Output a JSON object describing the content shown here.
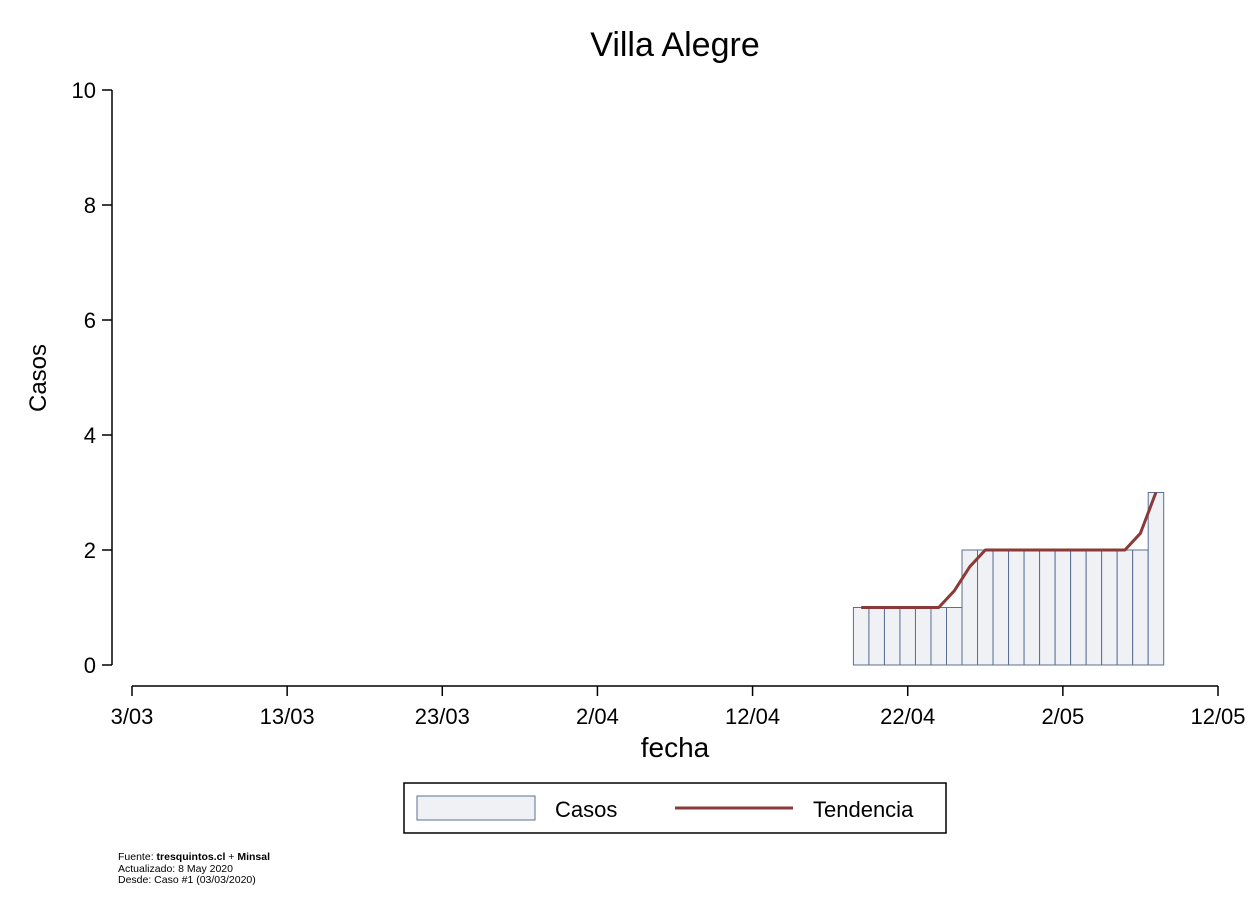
{
  "chart_data": {
    "type": "bar",
    "title": "Villa Alegre",
    "xlabel": "fecha",
    "ylabel": "Casos",
    "ylim": [
      0,
      10
    ],
    "yticks": [
      0,
      2,
      4,
      6,
      8,
      10
    ],
    "xlim": [
      "2020-03-03",
      "2020-05-12"
    ],
    "xticks": [
      "3/03",
      "13/03",
      "23/03",
      "2/04",
      "12/04",
      "22/04",
      "2/05",
      "12/05"
    ],
    "grid": false,
    "legend_position": "bottom",
    "bar_color": "#f0f1f4",
    "bar_edge_color": "#5a6f93",
    "trend_color": "#8b3a3a",
    "series": [
      {
        "name": "Casos",
        "kind": "bar",
        "x": [
          "2020-04-19",
          "2020-04-20",
          "2020-04-21",
          "2020-04-22",
          "2020-04-23",
          "2020-04-24",
          "2020-04-25",
          "2020-04-26",
          "2020-04-27",
          "2020-04-28",
          "2020-04-29",
          "2020-04-30",
          "2020-05-01",
          "2020-05-02",
          "2020-05-03",
          "2020-05-04",
          "2020-05-05",
          "2020-05-06",
          "2020-05-07",
          "2020-05-08"
        ],
        "values": [
          1,
          1,
          1,
          1,
          1,
          1,
          1,
          2,
          2,
          2,
          2,
          2,
          2,
          2,
          2,
          2,
          2,
          2,
          2,
          3
        ]
      },
      {
        "name": "Tendencia",
        "kind": "line",
        "x": [
          "2020-04-19",
          "2020-04-20",
          "2020-04-21",
          "2020-04-22",
          "2020-04-23",
          "2020-04-24",
          "2020-04-25",
          "2020-04-26",
          "2020-04-27",
          "2020-04-28",
          "2020-04-29",
          "2020-04-30",
          "2020-05-01",
          "2020-05-02",
          "2020-05-03",
          "2020-05-04",
          "2020-05-05",
          "2020-05-06",
          "2020-05-07",
          "2020-05-08"
        ],
        "values": [
          1,
          1,
          1,
          1,
          1,
          1,
          1.29,
          1.71,
          2,
          2,
          2,
          2,
          2,
          2,
          2,
          2,
          2,
          2,
          2.29,
          3
        ]
      }
    ]
  },
  "footer": {
    "source_prefix": "Fuente: ",
    "source_site": "tresquintos.cl",
    "source_plus": " + ",
    "source_org": "Minsal",
    "updated": "Actualizado: 8 May 2020",
    "since": "Desde: Caso #1  (03/03/2020)"
  }
}
